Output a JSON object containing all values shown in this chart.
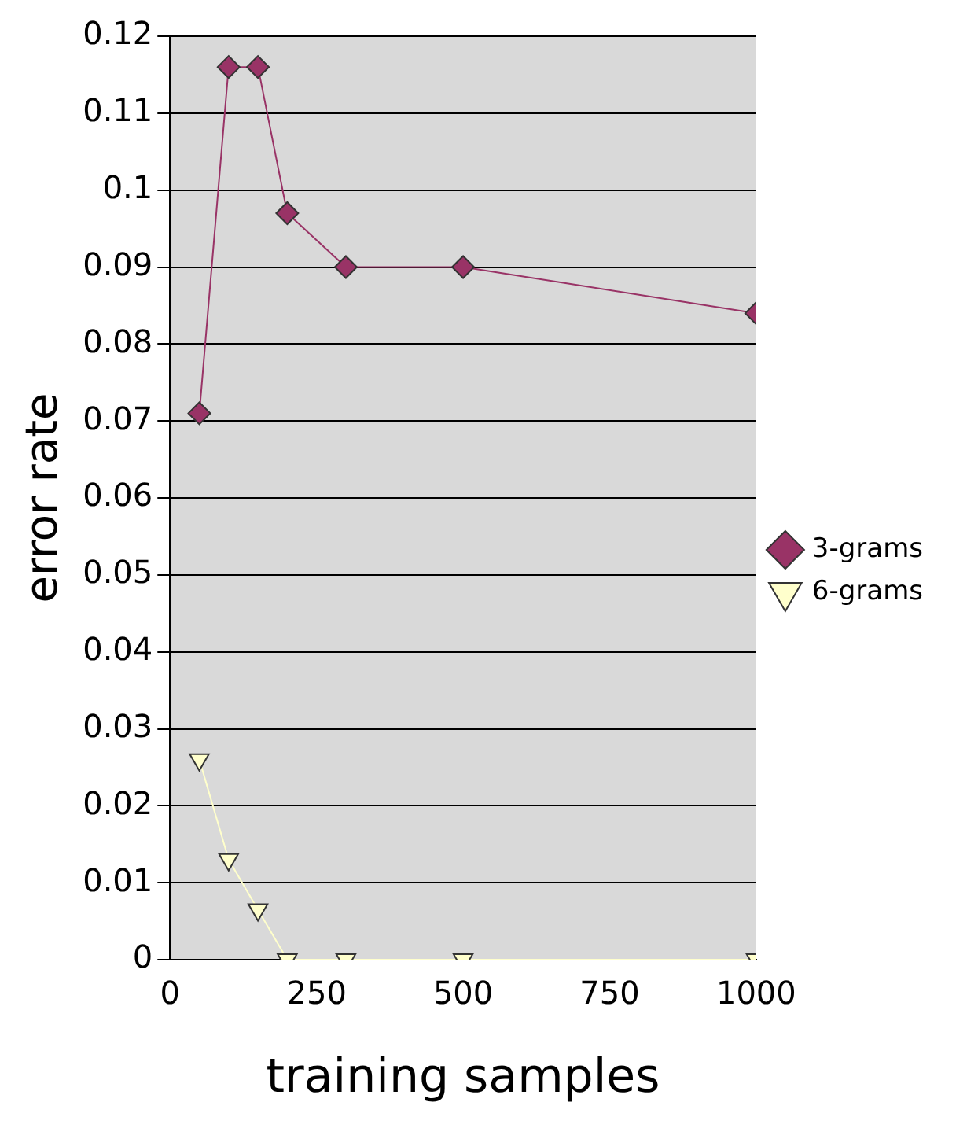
{
  "chart_data": {
    "type": "line",
    "xlabel": "training samples",
    "ylabel": "error rate",
    "xlim": [
      0,
      1000
    ],
    "xticks": [
      0,
      250,
      500,
      750,
      1000
    ],
    "ylim": [
      0,
      0.12
    ],
    "yticks": [
      0,
      0.01,
      0.02,
      0.03,
      0.04,
      0.05,
      0.06,
      0.07,
      0.08,
      0.09,
      0.1,
      0.11,
      0.12
    ],
    "grid": "y",
    "legend": "right",
    "series": [
      {
        "name": "3-grams",
        "color": "#993366",
        "marker": "diamond",
        "x": [
          50,
          100,
          150,
          200,
          300,
          500,
          1000
        ],
        "values": [
          0.071,
          0.116,
          0.116,
          0.097,
          0.09,
          0.09,
          0.084
        ]
      },
      {
        "name": "6-grams",
        "color": "#ffffcc",
        "marker": "triangle",
        "x": [
          50,
          100,
          150,
          200,
          300,
          500,
          1000
        ],
        "values": [
          0.026,
          0.013,
          0.0065,
          0,
          0,
          0,
          0
        ]
      }
    ]
  }
}
